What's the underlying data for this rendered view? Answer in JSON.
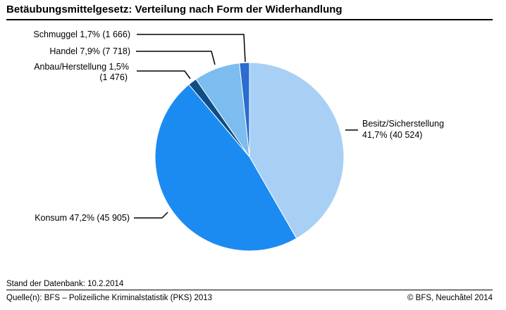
{
  "header": {
    "title": "Betäubungsmittelgesetz: Verteilung nach Form der Widerhandlung"
  },
  "footer": {
    "stand_label": "Stand der Datenbank:",
    "stand_value": "10.2.2014",
    "source": "Quelle(n): BFS – Polizeiliche Kriminalstatistik (PKS) 2013",
    "copyright": "© BFS, Neuchâtel 2014"
  },
  "chart_data": {
    "type": "pie",
    "title": "Betäubungsmittelgesetz: Verteilung nach Form der Widerhandlung",
    "start": "12 o'clock, clockwise",
    "slices": [
      {
        "label": "Besitz/Sicherstellung",
        "percent": 41.7,
        "percent_text": "41,7%",
        "count": 40524,
        "count_text": "(40 524)",
        "color": "#a8d0f4",
        "label_lines": [
          "Besitz/Sicherstellung",
          "41,7% (40 524)"
        ]
      },
      {
        "label": "Konsum",
        "percent": 47.2,
        "percent_text": "47,2%",
        "count": 45905,
        "count_text": "(45 905)",
        "color": "#1c8bf1",
        "label_lines": [
          "Konsum 47,2% (45 905)"
        ]
      },
      {
        "label": "Anbau/Herstellung",
        "percent": 1.5,
        "percent_text": "1,5%",
        "count": 1476,
        "count_text": "(1 476)",
        "color": "#0d4e86",
        "label_lines": [
          "Anbau/Herstellung 1,5%",
          "(1 476)"
        ]
      },
      {
        "label": "Handel",
        "percent": 7.9,
        "percent_text": "7,9%",
        "count": 7718,
        "count_text": "(7 718)",
        "color": "#7cbcee",
        "label_lines": [
          "Handel 7,9% (7 718)"
        ]
      },
      {
        "label": "Schmuggel",
        "percent": 1.7,
        "percent_text": "1,7%",
        "count": 1666,
        "count_text": "(1 666)",
        "color": "#2a6cd0",
        "label_lines": [
          "Schmuggel 1,7% (1 666)"
        ]
      }
    ]
  }
}
